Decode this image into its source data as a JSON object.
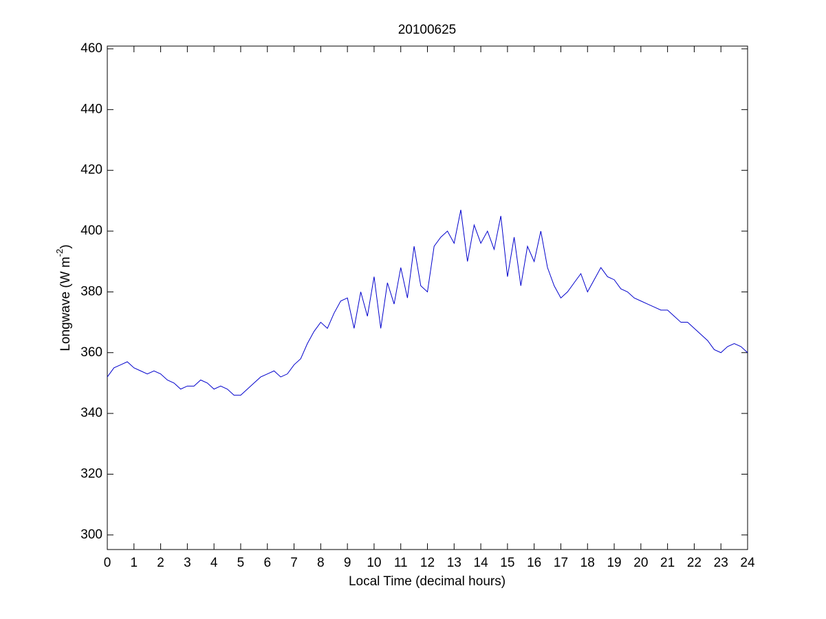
{
  "chart_data": {
    "type": "line",
    "title": "20100625",
    "x_label": "Local Time (decimal hours)",
    "y_label": [
      "Longwave (W m",
      "-2",
      ")"
    ],
    "x": [
      0,
      0.25,
      0.5,
      0.75,
      1,
      1.25,
      1.5,
      1.75,
      2,
      2.25,
      2.5,
      2.75,
      3,
      3.25,
      3.5,
      3.75,
      4,
      4.25,
      4.5,
      4.75,
      5,
      5.25,
      5.5,
      5.75,
      6,
      6.25,
      6.5,
      6.75,
      7,
      7.25,
      7.5,
      7.75,
      8,
      8.25,
      8.5,
      8.75,
      9,
      9.25,
      9.5,
      9.75,
      10,
      10.25,
      10.5,
      10.75,
      11,
      11.25,
      11.5,
      11.75,
      12,
      12.25,
      12.5,
      12.75,
      13,
      13.25,
      13.5,
      13.75,
      14,
      14.25,
      14.5,
      14.75,
      15,
      15.25,
      15.5,
      15.75,
      16,
      16.25,
      16.5,
      16.75,
      17,
      17.25,
      17.5,
      17.75,
      18,
      18.25,
      18.5,
      18.75,
      19,
      19.25,
      19.5,
      19.75,
      20,
      20.25,
      20.5,
      20.75,
      21,
      21.25,
      21.5,
      21.75,
      22,
      22.25,
      22.5,
      22.75,
      23,
      23.25,
      23.5,
      23.75,
      24
    ],
    "series": [
      {
        "color": "#0000cc",
        "values": [
          352,
          355,
          356,
          357,
          355,
          354,
          353,
          354,
          353,
          351,
          350,
          348,
          349,
          349,
          351,
          350,
          348,
          349,
          348,
          346,
          346,
          348,
          350,
          352,
          353,
          354,
          352,
          353,
          356,
          358,
          363,
          367,
          370,
          368,
          373,
          377,
          378,
          368,
          380,
          372,
          385,
          368,
          383,
          376,
          388,
          378,
          395,
          382,
          380,
          395,
          398,
          400,
          396,
          407,
          390,
          402,
          396,
          400,
          394,
          405,
          385,
          398,
          382,
          395,
          390,
          400,
          388,
          382,
          378,
          380,
          383,
          386,
          380,
          384,
          388,
          385,
          384,
          381,
          380,
          378,
          377,
          376,
          375,
          374,
          374,
          372,
          370,
          370,
          368,
          366,
          364,
          361,
          360,
          362,
          363,
          362,
          360
        ]
      }
    ],
    "xlim": [
      0,
      24
    ],
    "ylim": [
      295.2,
      460.9
    ],
    "xticks": [
      0,
      1,
      2,
      3,
      4,
      5,
      6,
      7,
      8,
      9,
      10,
      11,
      12,
      13,
      14,
      15,
      16,
      17,
      18,
      19,
      20,
      21,
      22,
      23,
      24
    ],
    "yticks": [
      300,
      320,
      340,
      360,
      380,
      400,
      420,
      440,
      460
    ]
  }
}
